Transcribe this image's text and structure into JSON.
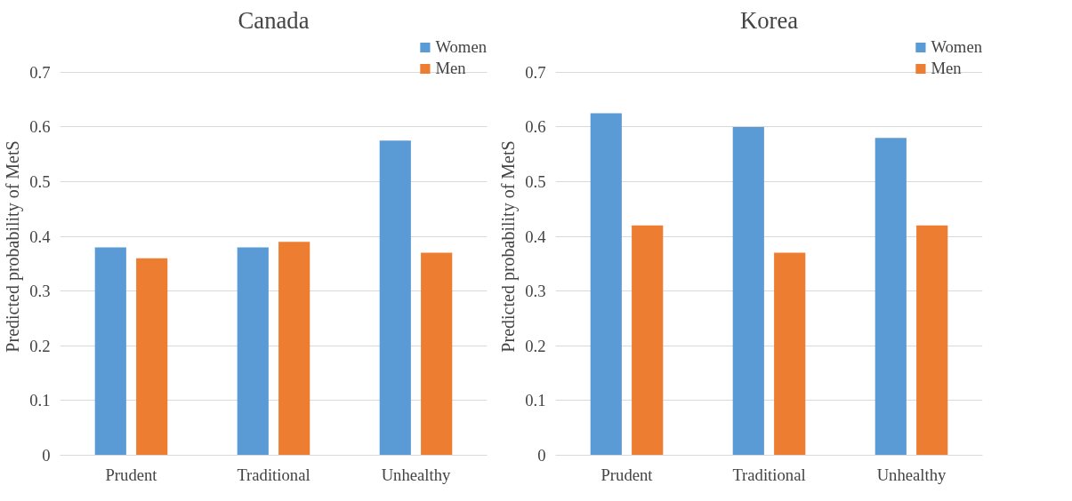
{
  "chart_data": [
    {
      "type": "bar",
      "title": "Canada",
      "ylabel": "Predicted probability of MetS",
      "categories": [
        "Prudent",
        "Traditional",
        "Unhealthy"
      ],
      "series": [
        {
          "name": "Women",
          "color": "#5b9bd5",
          "values": [
            0.38,
            0.38,
            0.575
          ]
        },
        {
          "name": "Men",
          "color": "#ed7d31",
          "values": [
            0.36,
            0.39,
            0.37
          ]
        }
      ],
      "ylim": [
        0,
        0.7
      ],
      "yticks": [
        {
          "value": 0,
          "label": "0"
        },
        0.1,
        0.2,
        0.3,
        0.4,
        0.5,
        0.6,
        0.7
      ],
      "grid": "y",
      "legend": "top right"
    },
    {
      "type": "bar",
      "title": "Korea",
      "ylabel": "Predicted probability of MetS",
      "categories": [
        "Prudent",
        "Traditional",
        "Unhealthy"
      ],
      "series": [
        {
          "name": "Women",
          "color": "#5b9bd5",
          "values": [
            0.625,
            0.6,
            0.58
          ]
        },
        {
          "name": "Men",
          "color": "#ed7d31",
          "values": [
            0.42,
            0.37,
            0.42
          ]
        }
      ],
      "ylim": [
        0,
        0.7
      ],
      "yticks": [
        {
          "value": 0,
          "label": "0"
        },
        0.1,
        0.2,
        0.3,
        0.4,
        0.5,
        0.6,
        0.7
      ],
      "grid": "y",
      "legend": "top right"
    }
  ]
}
